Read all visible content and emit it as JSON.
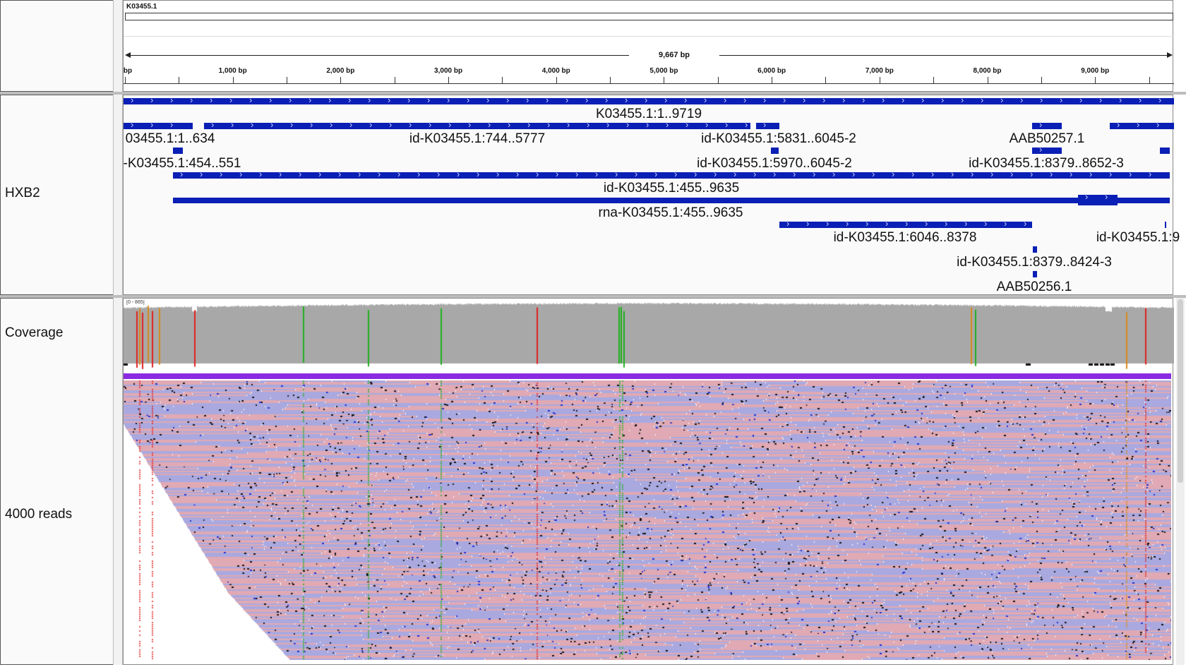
{
  "header": {
    "chromosome_label": "K03455.1",
    "span_label": "9,667 bp",
    "ruler_ticks": [
      {
        "label": "bp",
        "pos_bp": 0
      },
      {
        "label": "1,000 bp",
        "pos_bp": 1000
      },
      {
        "label": "2,000 bp",
        "pos_bp": 2000
      },
      {
        "label": "3,000 bp",
        "pos_bp": 3000
      },
      {
        "label": "4,000 bp",
        "pos_bp": 4000
      },
      {
        "label": "5,000 bp",
        "pos_bp": 5000
      },
      {
        "label": "6,000 bp",
        "pos_bp": 6000
      },
      {
        "label": "7,000 bp",
        "pos_bp": 7000
      },
      {
        "label": "8,000 bp",
        "pos_bp": 8000
      },
      {
        "label": "9,000 bp",
        "pos_bp": 9000
      }
    ]
  },
  "tracks": {
    "annotation_name": "HXB2",
    "coverage_name": "Coverage",
    "coverage_range": "[0 - 865]",
    "reads_name": "4000 reads"
  },
  "features": [
    {
      "label": "K03455.1:1..9719"
    },
    {
      "label": "03455.1:1..634"
    },
    {
      "label": "id-K03455.1:744..5777"
    },
    {
      "label": "id-K03455.1:5831..6045-2"
    },
    {
      "label": "AAB50257.1"
    },
    {
      "label": "-K03455.1:454..551"
    },
    {
      "label": "id-K03455.1:5970..6045-2"
    },
    {
      "label": "id-K03455.1:8379..8652-3"
    },
    {
      "label": "id-K03455.1:455..9635"
    },
    {
      "label": "rna-K03455.1:455..9635"
    },
    {
      "label": "id-K03455.1:6046..8378"
    },
    {
      "label": "id-K03455.1:9"
    },
    {
      "label": "id-K03455.1:8379..8424-3"
    },
    {
      "label": "AAB50256.1"
    }
  ],
  "colors": {
    "feature_blue": "#0a1fb5",
    "coverage_gray": "#a8a8a8",
    "mismatch_A_green": "#1fb01f",
    "mismatch_T_red": "#e02020",
    "mismatch_G_orange": "#d78a1a",
    "mismatch_C_blue": "#2030d0",
    "read_forward_pink": "#e0a9b3",
    "read_reverse_blue": "#a9a9e0",
    "insertion_purple": "#8a2be2"
  }
}
